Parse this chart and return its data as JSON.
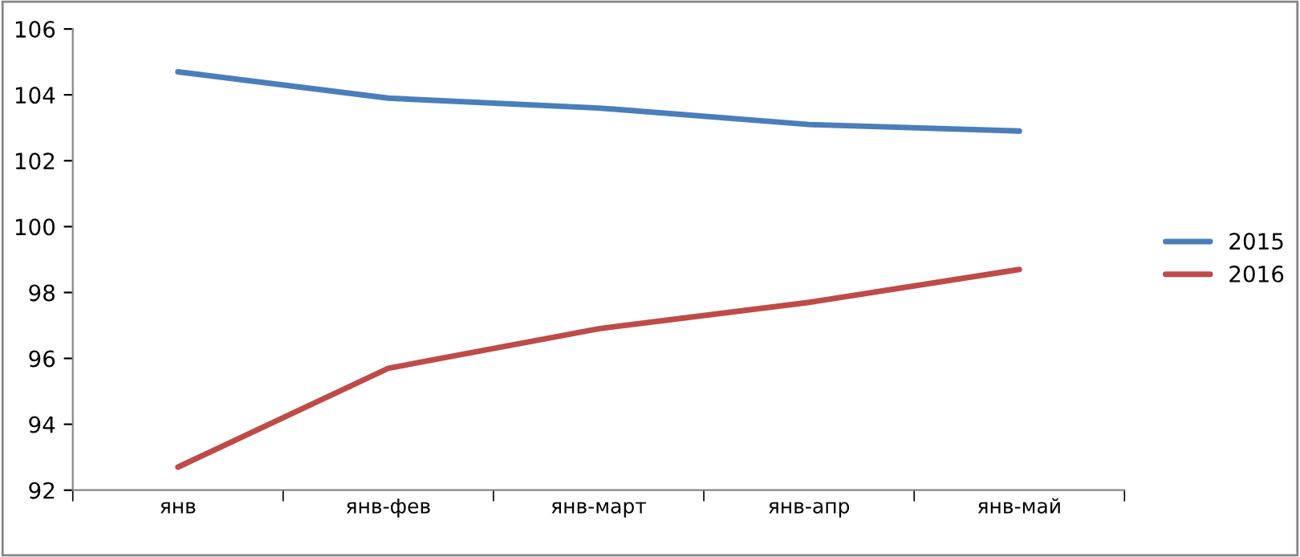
{
  "chart_data": {
    "type": "line",
    "categories": [
      "янв",
      "янв-фев",
      "янв-март",
      "янв-апр",
      "янв-май"
    ],
    "series": [
      {
        "name": "2015",
        "color": "#4a7ebb",
        "values": [
          104.7,
          103.9,
          103.6,
          103.1,
          102.9
        ]
      },
      {
        "name": "2016",
        "color": "#be4b48",
        "values": [
          92.7,
          95.7,
          96.9,
          97.7,
          98.7
        ]
      }
    ],
    "ylim": [
      92,
      106
    ],
    "yticks": [
      92,
      94,
      96,
      98,
      100,
      102,
      104,
      106
    ],
    "grid": false,
    "legend": "right",
    "marker": "none"
  }
}
